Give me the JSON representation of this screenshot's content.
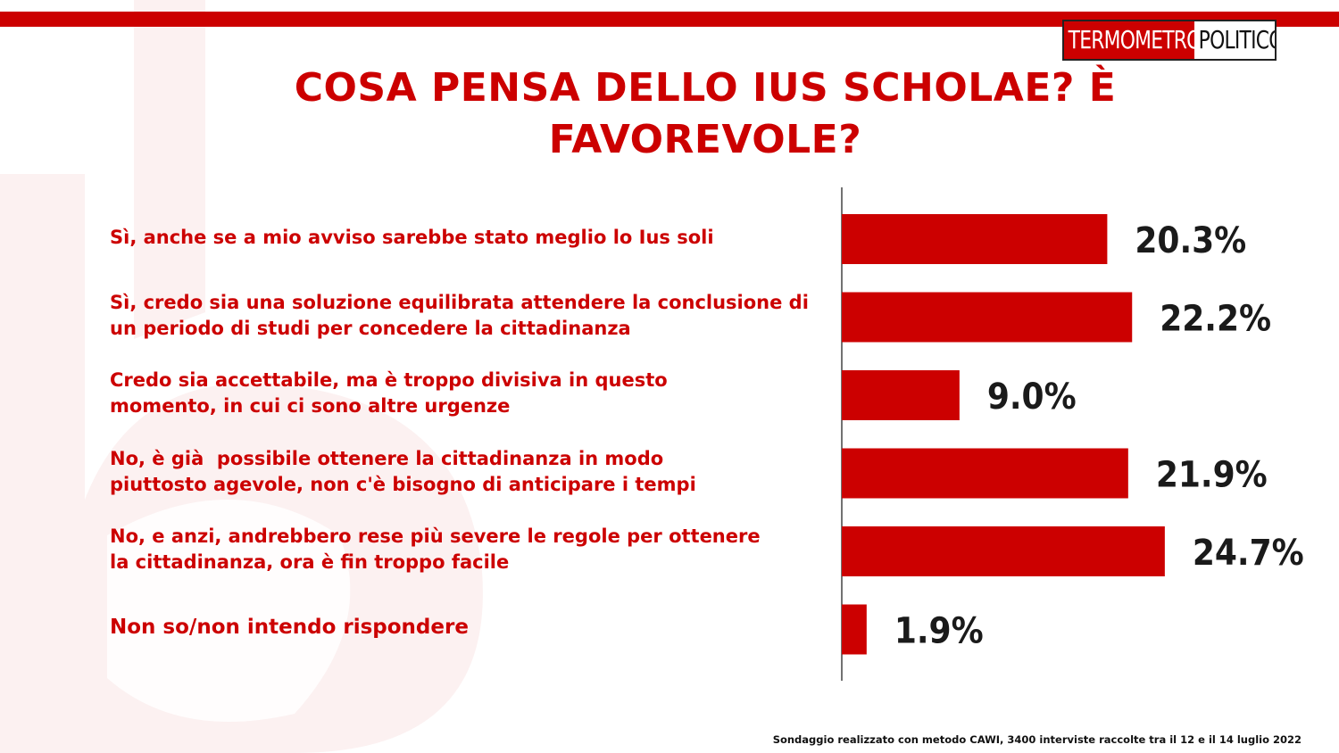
{
  "colors": {
    "accent": "#cc0000",
    "text": "#cc0000",
    "watermark": "#fbeeee"
  },
  "logo": {
    "left": "TERMOMETRO",
    "right": "POLITICO"
  },
  "title_line1": "COSA PENSA DELLO IUS SCHOLAE? È",
  "title_line2": "FAVOREVOLE?",
  "footnote": "Sondaggio realizzato con metodo CAWI, 3400 interviste raccolte tra il 12 e il 14 luglio 2022",
  "chart_data": {
    "type": "bar",
    "orientation": "horizontal",
    "title": "COSA PENSA DELLO IUS SCHOLAE? È FAVOREVOLE?",
    "categories": [
      [
        "Sì, anche se a mio avviso sarebbe stato meglio lo Ius soli"
      ],
      [
        "Sì, credo sia una soluzione equilibrata attendere la conclusione di",
        "un periodo di studi per concedere la cittadinanza"
      ],
      [
        "Credo sia accettabile, ma è troppo divisiva in questo",
        "momento, in cui ci sono altre urgenze"
      ],
      [
        "No, è già  possibile ottenere la cittadinanza in modo",
        "piuttosto agevole, non c'è bisogno di anticipare i tempi"
      ],
      [
        "No, e anzi, andrebbero rese più severe le regole per ottenere",
        "la cittadinanza, ora è fin troppo facile"
      ],
      [
        "Non so/non intendo rispondere"
      ]
    ],
    "values": [
      20.3,
      22.2,
      9.0,
      21.9,
      24.7,
      1.9
    ],
    "value_labels": [
      "20.3%",
      "22.2%",
      "9.0%",
      "21.9%",
      "24.7%",
      "1.9%"
    ],
    "xlim": [
      0,
      25
    ],
    "grid": false,
    "legend": "none"
  }
}
